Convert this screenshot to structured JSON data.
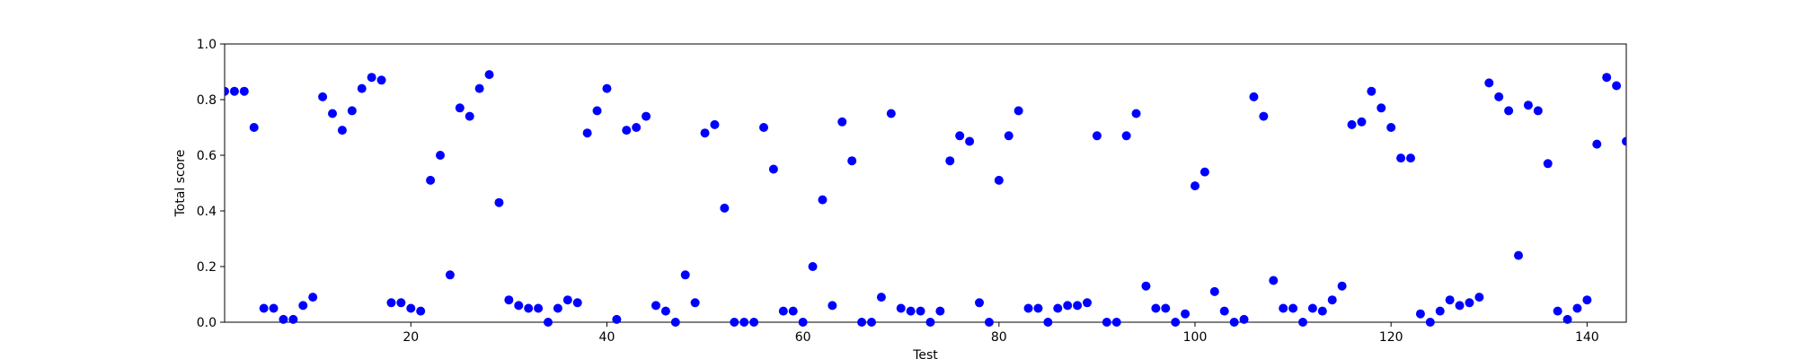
{
  "chart_data": {
    "type": "scatter",
    "title": "",
    "xlabel": "Test",
    "ylabel": "Total score",
    "xlim": [
      1,
      144
    ],
    "ylim": [
      0.0,
      1.0
    ],
    "x_ticks": [
      20,
      40,
      60,
      80,
      100,
      120,
      140
    ],
    "y_ticks": [
      "0.0",
      "0.2",
      "0.4",
      "0.6",
      "0.8",
      "1.0"
    ],
    "grid": false,
    "legend": "none",
    "marker_color": "#0000ff",
    "series": [
      {
        "x": [
          1,
          2,
          3,
          4,
          5,
          6,
          7,
          8,
          9,
          10,
          11,
          12,
          13,
          14,
          15,
          16,
          17,
          18,
          19,
          20,
          21,
          22,
          23,
          24,
          25,
          26,
          27,
          28,
          29,
          30,
          31,
          32,
          33,
          34,
          35,
          36,
          37,
          38,
          39,
          40,
          41,
          42,
          43,
          44,
          45,
          46,
          47,
          48,
          49,
          50,
          51,
          52,
          53,
          54,
          55,
          56,
          57,
          58,
          59,
          60,
          61,
          62,
          63,
          64,
          65,
          66,
          67,
          68,
          69,
          70,
          71,
          72,
          73,
          74,
          75,
          76,
          77,
          78,
          79,
          80,
          81,
          82,
          83,
          84,
          85,
          86,
          87,
          88,
          89,
          90,
          91,
          92,
          93,
          94,
          95,
          96,
          97,
          98,
          99,
          100,
          101,
          102,
          103,
          104,
          105,
          106,
          107,
          108,
          109,
          110,
          111,
          112,
          113,
          114,
          115,
          116,
          117,
          118,
          119,
          120,
          121,
          122,
          123,
          124,
          125,
          126,
          127,
          128,
          129,
          130,
          131,
          132,
          133,
          134,
          135,
          136,
          137,
          138,
          139,
          140,
          141,
          142,
          143,
          144
        ],
        "y": [
          0.83,
          0.83,
          0.83,
          0.7,
          0.05,
          0.05,
          0.01,
          0.01,
          0.06,
          0.09,
          0.81,
          0.75,
          0.69,
          0.76,
          0.84,
          0.88,
          0.87,
          0.07,
          0.07,
          0.05,
          0.04,
          0.51,
          0.6,
          0.17,
          0.77,
          0.74,
          0.84,
          0.89,
          0.43,
          0.08,
          0.06,
          0.05,
          0.05,
          0.0,
          0.05,
          0.08,
          0.07,
          0.68,
          0.76,
          0.84,
          0.01,
          0.69,
          0.7,
          0.74,
          0.06,
          0.04,
          0.0,
          0.17,
          0.07,
          0.68,
          0.71,
          0.41,
          0.0,
          0.0,
          0.0,
          0.7,
          0.55,
          0.04,
          0.04,
          0.0,
          0.2,
          0.44,
          0.06,
          0.72,
          0.58,
          0.0,
          0.0,
          0.09,
          0.75,
          0.05,
          0.04,
          0.04,
          0.0,
          0.04,
          0.58,
          0.67,
          0.65,
          0.07,
          0.0,
          0.51,
          0.67,
          0.76,
          0.05,
          0.05,
          0.0,
          0.05,
          0.06,
          0.06,
          0.07,
          0.67,
          0.0,
          0.0,
          0.67,
          0.75,
          0.13,
          0.05,
          0.05,
          0.0,
          0.03,
          0.49,
          0.54,
          0.11,
          0.04,
          0.0,
          0.01,
          0.81,
          0.74,
          0.15,
          0.05,
          0.05,
          0.0,
          0.05,
          0.04,
          0.08,
          0.13,
          0.71,
          0.72,
          0.83,
          0.77,
          0.7,
          0.59,
          0.59,
          0.03,
          0.0,
          0.04,
          0.08,
          0.06,
          0.07,
          0.09,
          0.86,
          0.81,
          0.76,
          0.24,
          0.78,
          0.76,
          0.57,
          0.04,
          0.01,
          0.05,
          0.08,
          0.64,
          0.88,
          0.85,
          0.65
        ]
      }
    ]
  }
}
